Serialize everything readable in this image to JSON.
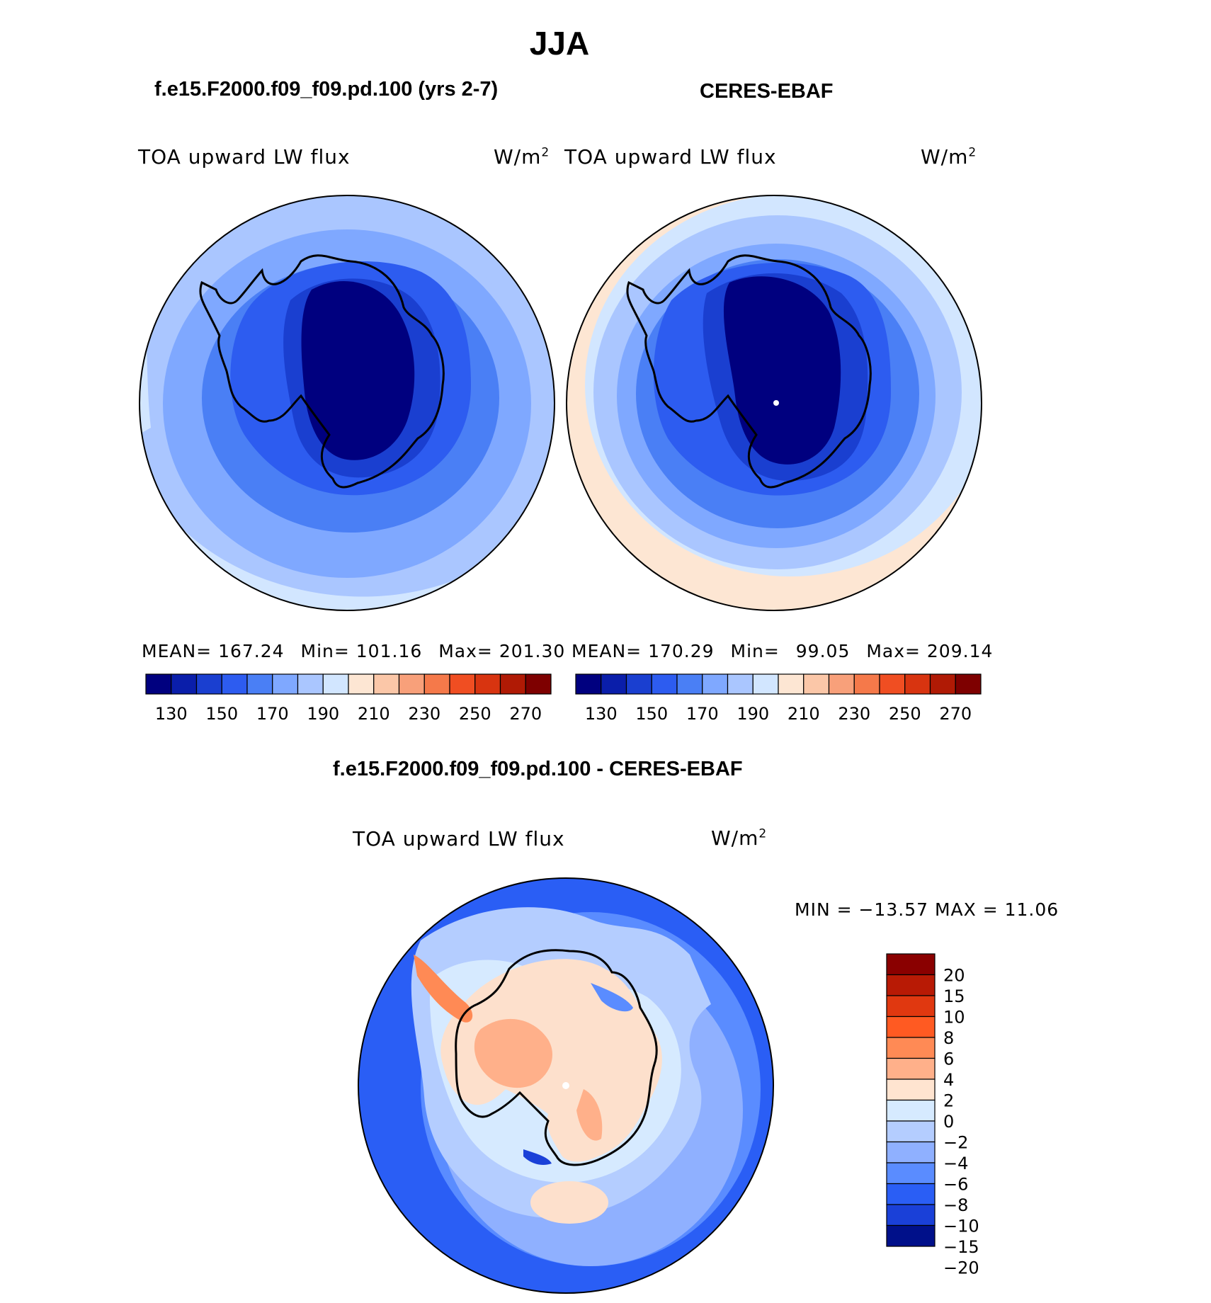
{
  "figure": {
    "title": "JJA",
    "case_title": "f.e15.F2000.f09_f09.pd.100 (yrs 2-7)",
    "obs_title": "CERES-EBAF",
    "diff_title": "f.e15.F2000.f09_f09.pd.100 - CERES-EBAF"
  },
  "panels": [
    {
      "variable": "TOA upward LW flux",
      "units": "W/m",
      "units_sup": "2",
      "stats": {
        "mean_label": "MEAN=",
        "mean": "167.24",
        "min_label": "Min=",
        "min": "101.16",
        "max_label": "Max=",
        "max": "201.30"
      }
    },
    {
      "variable": "TOA upward LW flux",
      "units": "W/m",
      "units_sup": "2",
      "stats": {
        "mean_label": "MEAN=",
        "mean": "170.29",
        "min_label": "Min=",
        "min": "99.05",
        "max_label": "Max=",
        "max": "209.14"
      }
    },
    {
      "variable": "TOA upward LW flux",
      "units": "W/m",
      "units_sup": "2",
      "stats_text": "MIN = −13.57 MAX =   11.06"
    }
  ],
  "colorbar_main": {
    "colors": [
      "#00007f",
      "#0a1eaa",
      "#1a3fd0",
      "#2d5cf0",
      "#4a7ff5",
      "#7fa8ff",
      "#aac6ff",
      "#d2e6ff",
      "#fde6d3",
      "#fbc7a8",
      "#f8a07a",
      "#f5794a",
      "#f04e22",
      "#d83410",
      "#b01a05",
      "#7e0000"
    ],
    "tick_labels": [
      "130",
      "150",
      "170",
      "190",
      "210",
      "230",
      "250",
      "270"
    ]
  },
  "colorbar_diff": {
    "colors_top_to_bottom": [
      "#8a0000",
      "#b81a05",
      "#e03810",
      "#ff5a22",
      "#ff8a55",
      "#ffb08a",
      "#ffe4d0",
      "#d6eaff",
      "#b4cdff",
      "#8fb0ff",
      "#5a8cff",
      "#2a5ef5",
      "#1a40d8",
      "#00108a"
    ],
    "tick_labels": [
      "20",
      "15",
      "10",
      "8",
      "6",
      "4",
      "2",
      "0",
      "−2",
      "−4",
      "−6",
      "−8",
      "−10",
      "−15",
      "−20"
    ]
  },
  "map_colors": {
    "ocean_outer": "#d2e6ff",
    "ring_1": "#aac6ff",
    "ring_2": "#7fa8ff",
    "ring_3": "#4a7ff5",
    "ring_4": "#2d5cf0",
    "ring_5": "#1a3fd0",
    "interior": "#00007f",
    "warm_edge": "#fde6d3",
    "coast": "#000000"
  }
}
